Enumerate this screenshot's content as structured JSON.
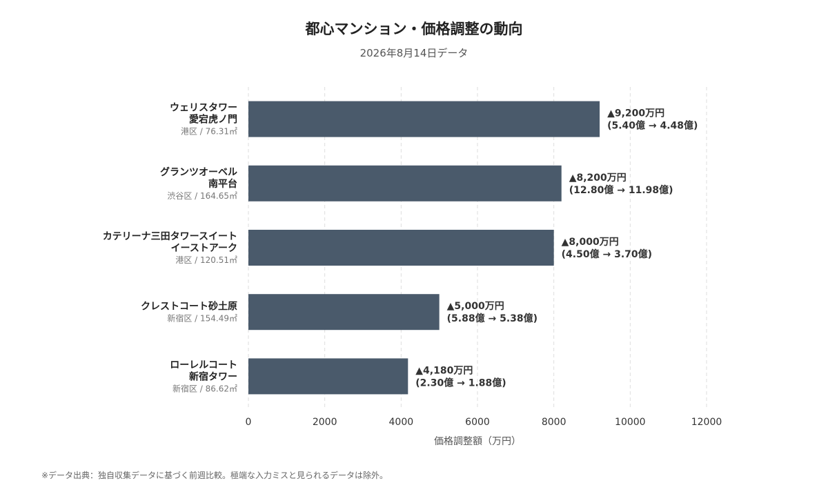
{
  "chart_data": {
    "type": "bar",
    "orientation": "horizontal",
    "title": "都心マンション・価格調整の動向",
    "subtitle": "2026年8月14日データ",
    "xlabel": "価格調整額（万円）",
    "ylabel": "",
    "xlim": [
      0,
      12000
    ],
    "xticks": [
      0,
      2000,
      4000,
      6000,
      8000,
      10000,
      12000
    ],
    "grid": true,
    "bar_color": "#4a5a6b",
    "categories": [
      {
        "line1": "ウェリスタワー",
        "line2": "愛宕虎ノ門",
        "meta": "港区 / 76.31㎡"
      },
      {
        "line1": "グランツオーベル",
        "line2": "南平台",
        "meta": "渋谷区 / 164.65㎡"
      },
      {
        "line1": "カテリーナ三田タワースイート",
        "line2": "イーストアーク",
        "meta": "港区 / 120.51㎡"
      },
      {
        "line1": "クレストコート砂土原",
        "line2": "",
        "meta": "新宿区 / 154.49㎡"
      },
      {
        "line1": "ローレルコート",
        "line2": "新宿タワー",
        "meta": "新宿区 / 86.62㎡"
      }
    ],
    "values": [
      9200,
      8200,
      8000,
      5000,
      4180
    ],
    "data_labels": [
      {
        "change": "▲9,200万円",
        "detail": "(5.40億 → 4.48億)"
      },
      {
        "change": "▲8,200万円",
        "detail": "(12.80億 → 11.98億)"
      },
      {
        "change": "▲8,000万円",
        "detail": "(4.50億 → 3.70億)"
      },
      {
        "change": "▲5,000万円",
        "detail": "(5.88億 → 5.38億)"
      },
      {
        "change": "▲4,180万円",
        "detail": "(2.30億 → 1.88億)"
      }
    ]
  },
  "footnote": "※データ出典：独自収集データに基づく前週比較。極端な入力ミスと見られるデータは除外。"
}
